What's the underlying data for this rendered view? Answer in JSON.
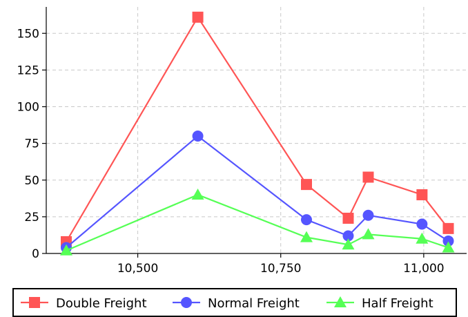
{
  "chart_data": {
    "type": "line",
    "title": "",
    "xlabel": "",
    "ylabel": "",
    "x": [
      10375,
      10605,
      10795,
      10868,
      10903,
      10997,
      11043
    ],
    "xlim": [
      10340,
      11075
    ],
    "ylim": [
      0,
      168
    ],
    "x_ticks": [
      {
        "value": 10500,
        "label": "10,500"
      },
      {
        "value": 10750,
        "label": "10,750"
      },
      {
        "value": 11000,
        "label": "11,000"
      }
    ],
    "y_ticks": [
      {
        "value": 0,
        "label": "0"
      },
      {
        "value": 25,
        "label": "25"
      },
      {
        "value": 50,
        "label": "50"
      },
      {
        "value": 75,
        "label": "75"
      },
      {
        "value": 100,
        "label": "100"
      },
      {
        "value": 125,
        "label": "125"
      },
      {
        "value": 150,
        "label": "150"
      }
    ],
    "grid": true,
    "legend_position": "bottom",
    "series": [
      {
        "name": "Double Freight",
        "marker": "square",
        "color": "#ff5555",
        "values": [
          8,
          161,
          47,
          24,
          52,
          40,
          17
        ]
      },
      {
        "name": "Normal Freight",
        "marker": "circle",
        "color": "#5555ff",
        "values": [
          4,
          80,
          23,
          12,
          26,
          20,
          8.5
        ]
      },
      {
        "name": "Half Freight",
        "marker": "triangle",
        "color": "#55ff55",
        "values": [
          2,
          40,
          11,
          6,
          13,
          10,
          4
        ]
      }
    ]
  }
}
